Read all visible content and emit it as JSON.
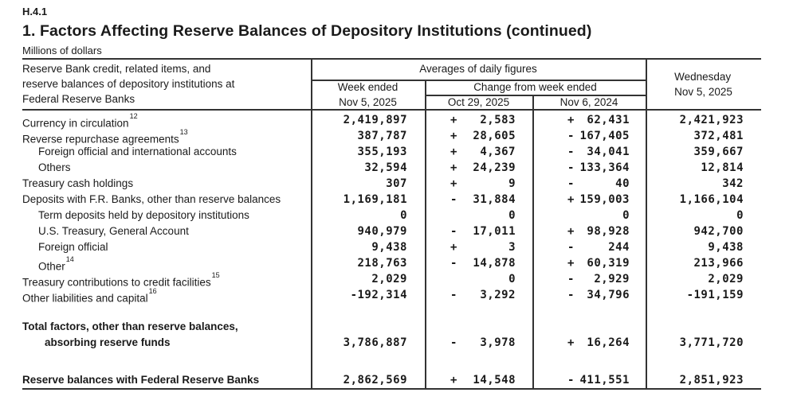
{
  "report": {
    "code": "H.4.1",
    "title": "1. Factors Affecting Reserve Balances of Depository Institutions (continued)",
    "units": "Millions of dollars"
  },
  "table": {
    "stub_header": {
      "line1": "Reserve Bank credit, related items, and",
      "line2": "reserve balances of depository institutions at",
      "line3": "Federal Reserve Banks"
    },
    "header": {
      "averages": "Averages of daily figures",
      "week_ended_label": "Week ended",
      "week_ended_date": "Nov 5, 2025",
      "change_label": "Change from week ended",
      "change_date_1": "Oct 29, 2025",
      "change_date_2": "Nov 6, 2024",
      "wednesday_label": "Wednesday",
      "wednesday_date": "Nov 5, 2025"
    },
    "rows": [
      {
        "label": "Currency in circulation",
        "sup": "12",
        "indent": 0,
        "week": "2,419,897",
        "c1": {
          "s": "+",
          "v": "2,583"
        },
        "c2": {
          "s": "+",
          "v": "62,431"
        },
        "wed": "2,421,923"
      },
      {
        "label": "Reverse repurchase agreements",
        "sup": "13",
        "indent": 0,
        "week": "387,787",
        "c1": {
          "s": "+",
          "v": "28,605"
        },
        "c2": {
          "s": "-",
          "v": "167,405"
        },
        "wed": "372,481"
      },
      {
        "label": "Foreign official and international accounts",
        "indent": 1,
        "week": "355,193",
        "c1": {
          "s": "+",
          "v": "4,367"
        },
        "c2": {
          "s": "-",
          "v": "34,041"
        },
        "wed": "359,667"
      },
      {
        "label": "Others",
        "indent": 1,
        "week": "32,594",
        "c1": {
          "s": "+",
          "v": "24,239"
        },
        "c2": {
          "s": "-",
          "v": "133,364"
        },
        "wed": "12,814"
      },
      {
        "label": "Treasury cash holdings",
        "indent": 0,
        "week": "307",
        "c1": {
          "s": "+",
          "v": "9"
        },
        "c2": {
          "s": "-",
          "v": "40"
        },
        "wed": "342"
      },
      {
        "label": "Deposits with F.R. Banks, other than reserve balances",
        "indent": 0,
        "week": "1,169,181",
        "c1": {
          "s": "-",
          "v": "31,884"
        },
        "c2": {
          "s": "+",
          "v": "159,003"
        },
        "wed": "1,166,104"
      },
      {
        "label": "Term deposits held by depository institutions",
        "indent": 1,
        "week": "0",
        "c1": {
          "s": "",
          "v": "0"
        },
        "c2": {
          "s": "",
          "v": "0"
        },
        "wed": "0"
      },
      {
        "label": "U.S. Treasury, General Account",
        "indent": 1,
        "week": "940,979",
        "c1": {
          "s": "-",
          "v": "17,011"
        },
        "c2": {
          "s": "+",
          "v": "98,928"
        },
        "wed": "942,700"
      },
      {
        "label": "Foreign official",
        "indent": 1,
        "week": "9,438",
        "c1": {
          "s": "+",
          "v": "3"
        },
        "c2": {
          "s": "-",
          "v": "244"
        },
        "wed": "9,438"
      },
      {
        "label": "Other",
        "sup": "14",
        "indent": 1,
        "week": "218,763",
        "c1": {
          "s": "-",
          "v": "14,878"
        },
        "c2": {
          "s": "+",
          "v": "60,319"
        },
        "wed": "213,966"
      },
      {
        "label": "Treasury contributions to credit facilities",
        "sup": "15",
        "indent": 0,
        "week": "2,029",
        "c1": {
          "s": "",
          "v": "0"
        },
        "c2": {
          "s": "-",
          "v": "2,929"
        },
        "wed": "2,029"
      },
      {
        "label": "Other liabilities and capital",
        "sup": "16",
        "indent": 0,
        "week": "-192,314",
        "c1": {
          "s": "-",
          "v": "3,292"
        },
        "c2": {
          "s": "-",
          "v": "34,796"
        },
        "wed": "-191,159"
      },
      {
        "lines": [
          "Total factors, other than reserve balances,",
          "absorbing reserve funds"
        ],
        "bold": true,
        "cls": "gap-total",
        "week": "3,786,887",
        "c1": {
          "s": "-",
          "v": "3,978"
        },
        "c2": {
          "s": "+",
          "v": "16,264"
        },
        "wed": "3,771,720"
      },
      {
        "label": "Reserve balances with Federal Reserve Banks",
        "bold": true,
        "cls": "gap-final",
        "week": "2,862,569",
        "c1": {
          "s": "+",
          "v": "14,548"
        },
        "c2": {
          "s": "-",
          "v": "411,551"
        },
        "wed": "2,851,923"
      }
    ]
  }
}
